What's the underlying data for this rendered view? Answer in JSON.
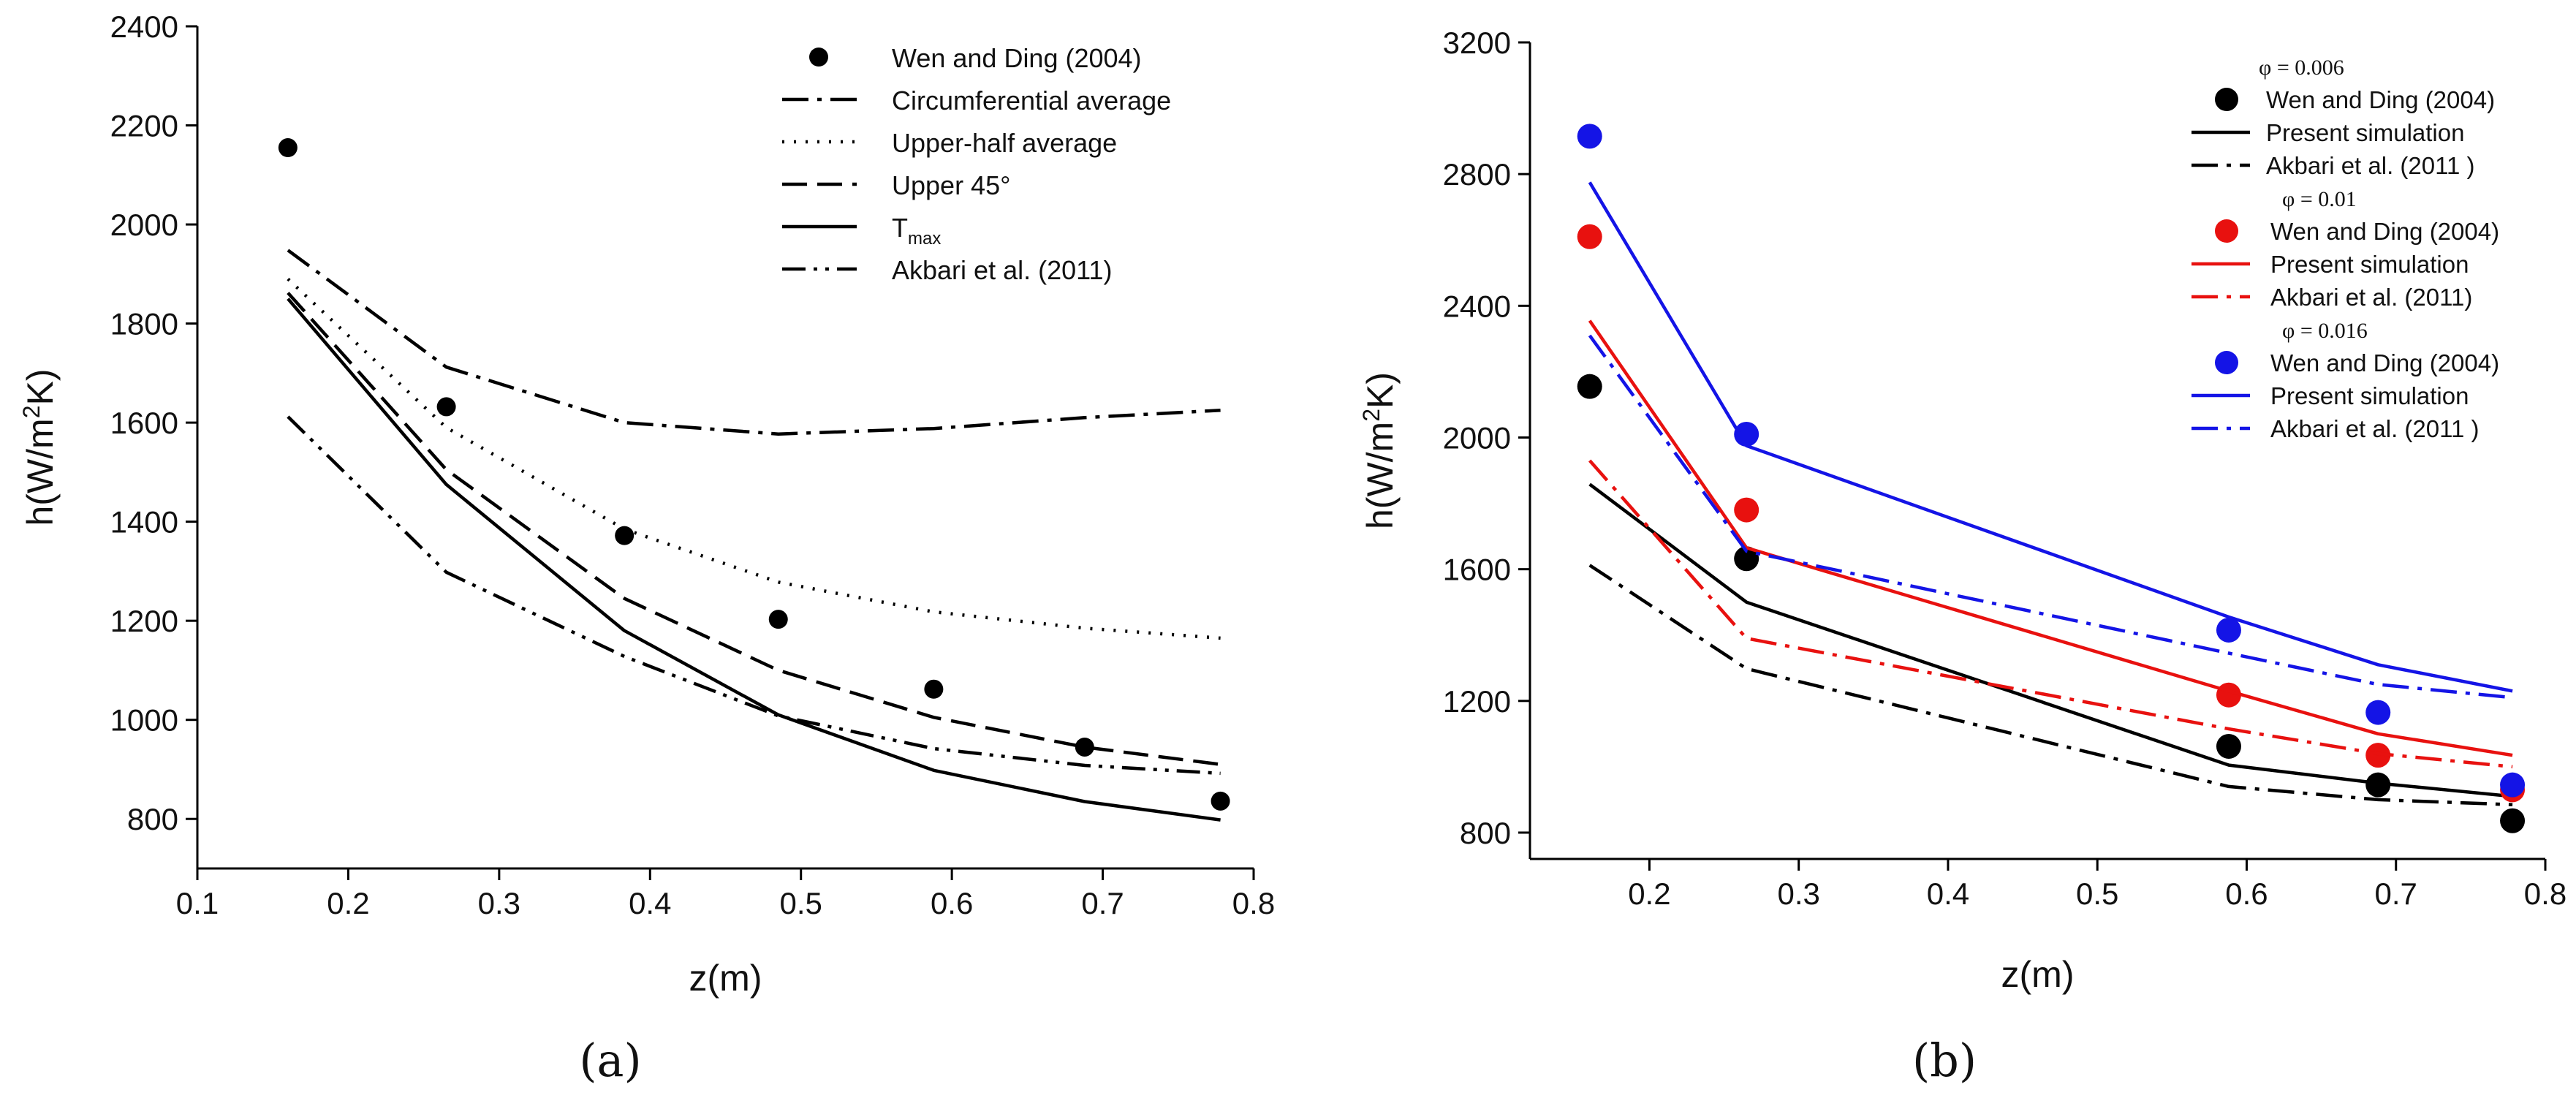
{
  "chart_data": [
    {
      "type": "line",
      "panel_label": "(a)",
      "xlabel": "z(m)",
      "ylabel": "h(W/m²K)",
      "ylabel_parts": {
        "pre": "h(W/m",
        "sup": "2",
        "post": "K)"
      },
      "xlim": [
        0.1,
        0.8
      ],
      "ylim": [
        700,
        2400
      ],
      "xticks": [
        0.1,
        0.2,
        0.3,
        0.4,
        0.5,
        0.6,
        0.7,
        0.8
      ],
      "xtick_labels": [
        "0.1",
        "0.2",
        "0.3",
        "0.4",
        "0.5",
        "0.6",
        "0.7",
        "0.8"
      ],
      "yticks": [
        800,
        1000,
        1200,
        1400,
        1600,
        1800,
        2000,
        2200,
        2400
      ],
      "ytick_labels": [
        "800",
        "1000",
        "1200",
        "1400",
        "1600",
        "1800",
        "2000",
        "2200",
        "2400"
      ],
      "grid": false,
      "legend_position": "top-right",
      "series": [
        {
          "name": "Wen and Ding (2004)",
          "marker": "circle",
          "style": "none",
          "color": "#000000",
          "x": [
            0.16,
            0.265,
            0.383,
            0.485,
            0.588,
            0.688,
            0.778
          ],
          "y": [
            2155,
            1632,
            1372,
            1203,
            1062,
            945,
            836
          ]
        },
        {
          "name": "Circumferential average",
          "style": "dashdot",
          "color": "#000000",
          "x": [
            0.16,
            0.265,
            0.383,
            0.485,
            0.588,
            0.688,
            0.778
          ],
          "y": [
            1948,
            1712,
            1600,
            1577,
            1588,
            1610,
            1625
          ]
        },
        {
          "name": "Upper-half average",
          "style": "dotted",
          "color": "#000000",
          "x": [
            0.16,
            0.265,
            0.383,
            0.485,
            0.588,
            0.688,
            0.778
          ],
          "y": [
            1890,
            1590,
            1385,
            1278,
            1218,
            1185,
            1165
          ]
        },
        {
          "name": "Upper 45°",
          "style": "dashed",
          "color": "#000000",
          "x": [
            0.16,
            0.265,
            0.383,
            0.485,
            0.588,
            0.688,
            0.778
          ],
          "y": [
            1862,
            1505,
            1245,
            1100,
            1005,
            945,
            910
          ]
        },
        {
          "name": "T",
          "name_sub": "max",
          "style": "solid",
          "color": "#000000",
          "x": [
            0.16,
            0.265,
            0.383,
            0.485,
            0.588,
            0.688,
            0.778
          ],
          "y": [
            1850,
            1475,
            1180,
            1010,
            898,
            835,
            798
          ]
        },
        {
          "name": "Akbari et al. (2011)",
          "style": "dashdotdot",
          "color": "#000000",
          "x": [
            0.16,
            0.265,
            0.383,
            0.485,
            0.588,
            0.688,
            0.778
          ],
          "y": [
            1612,
            1298,
            1128,
            1008,
            942,
            908,
            892
          ]
        }
      ]
    },
    {
      "type": "line",
      "panel_label": "(b)",
      "xlabel": "z(m)",
      "ylabel": "h(W/m²K)",
      "ylabel_parts": {
        "pre": "h(W/m",
        "sup": "2",
        "post": "K)"
      },
      "xlim": [
        0.12,
        0.8
      ],
      "ylim": [
        720,
        3200
      ],
      "xticks": [
        0.2,
        0.3,
        0.4,
        0.5,
        0.6,
        0.7,
        0.8
      ],
      "xtick_labels": [
        "0.2",
        "0.3",
        "0.4",
        "0.5",
        "0.6",
        "0.7",
        "0.8"
      ],
      "yticks": [
        800,
        1200,
        1600,
        2000,
        2400,
        2800,
        3200
      ],
      "ytick_labels": [
        "800",
        "1200",
        "1600",
        "2000",
        "2400",
        "2800",
        "3200"
      ],
      "grid": false,
      "legend_position": "top-right",
      "legend_groups": [
        {
          "title": "φ = 0.006",
          "color": "#000000"
        },
        {
          "title": "φ = 0.01",
          "color": "#e8110f"
        },
        {
          "title": "φ = 0.016",
          "color": "#1414e6"
        }
      ],
      "series": [
        {
          "name": "Wen and Ding (2004)",
          "group": 0,
          "marker": "circle",
          "style": "none",
          "color": "#000000",
          "x": [
            0.16,
            0.265,
            0.588,
            0.688,
            0.778
          ],
          "y": [
            2155,
            1632,
            1062,
            945,
            836
          ]
        },
        {
          "name": "Present simulation",
          "group": 0,
          "style": "solid",
          "color": "#000000",
          "x": [
            0.16,
            0.265,
            0.588,
            0.688,
            0.778
          ],
          "y": [
            1858,
            1500,
            1005,
            950,
            910
          ]
        },
        {
          "name": "Akbari et al. (2011 )",
          "group": 0,
          "style": "dashdot",
          "color": "#000000",
          "x": [
            0.16,
            0.265,
            0.588,
            0.688,
            0.778
          ],
          "y": [
            1612,
            1298,
            940,
            900,
            885
          ]
        },
        {
          "name": "Wen and Ding (2004)",
          "group": 1,
          "marker": "circle",
          "style": "none",
          "color": "#e8110f",
          "x": [
            0.16,
            0.265,
            0.588,
            0.688,
            0.778
          ],
          "y": [
            2610,
            1780,
            1218,
            1035,
            930
          ]
        },
        {
          "name": "Present simulation",
          "group": 1,
          "style": "solid",
          "color": "#e8110f",
          "x": [
            0.16,
            0.265,
            0.588,
            0.688,
            0.778
          ],
          "y": [
            2355,
            1665,
            1230,
            1100,
            1035
          ]
        },
        {
          "name": "Akbari et al. (2011)",
          "group": 1,
          "style": "dashdot",
          "color": "#e8110f",
          "x": [
            0.16,
            0.265,
            0.588,
            0.688,
            0.778
          ],
          "y": [
            1930,
            1390,
            1115,
            1040,
            1000
          ]
        },
        {
          "name": "Wen and Ding (2004)",
          "group": 2,
          "marker": "circle",
          "style": "none",
          "color": "#1414e6",
          "x": [
            0.16,
            0.265,
            0.588,
            0.688,
            0.778
          ],
          "y": [
            2915,
            2010,
            1415,
            1165,
            945
          ]
        },
        {
          "name": "Present simulation",
          "group": 2,
          "style": "solid",
          "color": "#1414e6",
          "x": [
            0.16,
            0.265,
            0.588,
            0.688,
            0.778
          ],
          "y": [
            2775,
            1975,
            1455,
            1310,
            1230
          ]
        },
        {
          "name": "Akbari et al. (2011 )",
          "group": 2,
          "style": "dashdot",
          "color": "#1414e6",
          "x": [
            0.16,
            0.265,
            0.588,
            0.688,
            0.778
          ],
          "y": [
            2310,
            1655,
            1345,
            1250,
            1210
          ]
        }
      ]
    }
  ]
}
